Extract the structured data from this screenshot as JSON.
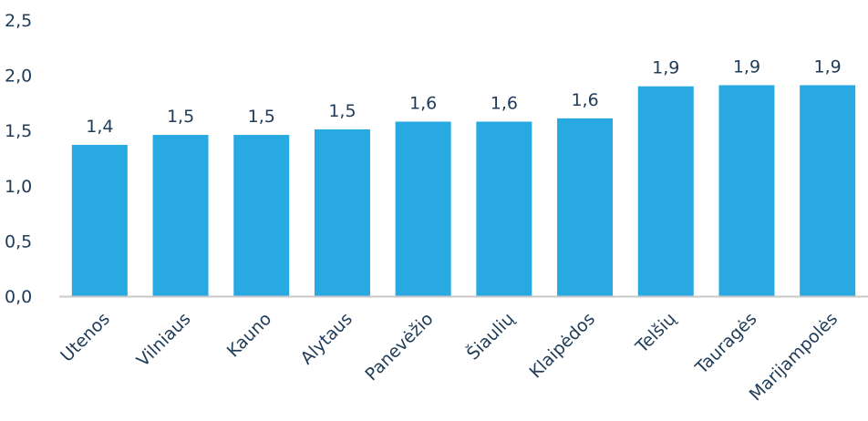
{
  "chart_data": {
    "type": "bar",
    "categories": [
      "Utenos",
      "Vilniaus",
      "Kauno",
      "Alytaus",
      "Panevėžio",
      "Šiaulių",
      "Klaipėdos",
      "Telšių",
      "Tauragės",
      "Marijampolės"
    ],
    "values": [
      1.37,
      1.46,
      1.46,
      1.51,
      1.58,
      1.58,
      1.61,
      1.9,
      1.91,
      1.91
    ],
    "data_labels": [
      "1,4",
      "1,5",
      "1,5",
      "1,5",
      "1,6",
      "1,6",
      "1,6",
      "1,9",
      "1,9",
      "1,9"
    ],
    "ylim": [
      0,
      2.5
    ],
    "yticks": [
      0,
      0.5,
      1.0,
      1.5,
      2.0,
      2.5
    ],
    "ytick_labels": [
      "0,0",
      "0,5",
      "1,0",
      "1,5",
      "2,0",
      "2,5"
    ],
    "grid": false,
    "bar_color": "#29a9e1",
    "axis_color": "#c8c8c8",
    "text_color": "#1f3b57"
  }
}
